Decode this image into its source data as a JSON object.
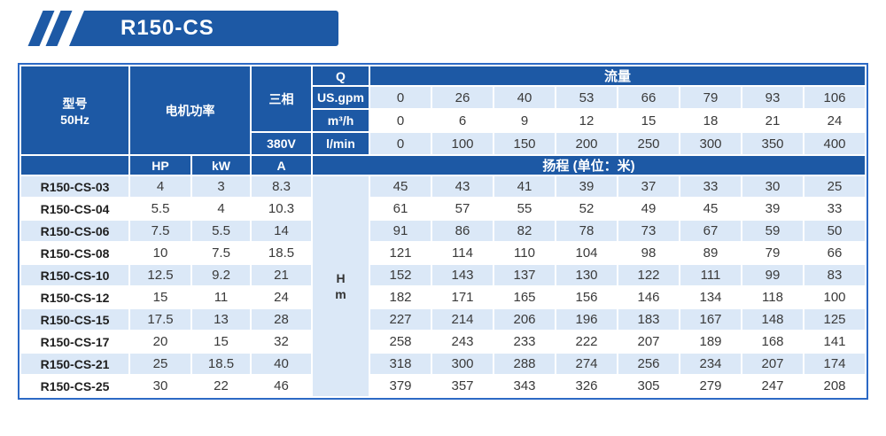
{
  "banner": {
    "title": "R150-CS"
  },
  "colors": {
    "primary_blue": "#1d59a5",
    "table_border_blue": "#2c69c5",
    "row_highlight_blue": "#dbe8f7",
    "row_white": "#ffffff",
    "value_text": "#3a3a3a"
  },
  "table": {
    "header": {
      "model_line1": "型号",
      "model_line2": "50Hz",
      "motor_power": "电机功率",
      "three_phase": "三相",
      "voltage": "380V",
      "q_label": "Q",
      "flow_label": "流量",
      "hp": "HP",
      "kw": "kW",
      "amp": "A",
      "head_label": "扬程 (单位：米)",
      "unit_rows": [
        {
          "unit": "US.gpm",
          "values": [
            0,
            26,
            40,
            53,
            66,
            79,
            93,
            106
          ]
        },
        {
          "unit": "m³/h",
          "values": [
            0,
            6,
            9,
            12,
            15,
            18,
            21,
            24
          ]
        },
        {
          "unit": "l/min",
          "values": [
            0,
            100,
            150,
            200,
            250,
            300,
            350,
            400
          ]
        }
      ]
    },
    "head_unit": {
      "line1": "H",
      "line2": "m"
    },
    "rows": [
      {
        "model": "R150-CS-03",
        "hp": "4",
        "kw": "3",
        "amp": "8.3",
        "head": [
          45,
          43,
          41,
          39,
          37,
          33,
          30,
          25
        ]
      },
      {
        "model": "R150-CS-04",
        "hp": "5.5",
        "kw": "4",
        "amp": "10.3",
        "head": [
          61,
          57,
          55,
          52,
          49,
          45,
          39,
          33
        ]
      },
      {
        "model": "R150-CS-06",
        "hp": "7.5",
        "kw": "5.5",
        "amp": "14",
        "head": [
          91,
          86,
          82,
          78,
          73,
          67,
          59,
          50
        ]
      },
      {
        "model": "R150-CS-08",
        "hp": "10",
        "kw": "7.5",
        "amp": "18.5",
        "head": [
          121,
          114,
          110,
          104,
          98,
          89,
          79,
          66
        ]
      },
      {
        "model": "R150-CS-10",
        "hp": "12.5",
        "kw": "9.2",
        "amp": "21",
        "head": [
          152,
          143,
          137,
          130,
          122,
          111,
          99,
          83
        ]
      },
      {
        "model": "R150-CS-12",
        "hp": "15",
        "kw": "11",
        "amp": "24",
        "head": [
          182,
          171,
          165,
          156,
          146,
          134,
          118,
          100
        ]
      },
      {
        "model": "R150-CS-15",
        "hp": "17.5",
        "kw": "13",
        "amp": "28",
        "head": [
          227,
          214,
          206,
          196,
          183,
          167,
          148,
          125
        ]
      },
      {
        "model": "R150-CS-17",
        "hp": "20",
        "kw": "15",
        "amp": "32",
        "head": [
          258,
          243,
          233,
          222,
          207,
          189,
          168,
          141
        ]
      },
      {
        "model": "R150-CS-21",
        "hp": "25",
        "kw": "18.5",
        "amp": "40",
        "head": [
          318,
          300,
          288,
          274,
          256,
          234,
          207,
          174
        ]
      },
      {
        "model": "R150-CS-25",
        "hp": "30",
        "kw": "22",
        "amp": "46",
        "head": [
          379,
          357,
          343,
          326,
          305,
          279,
          247,
          208
        ]
      }
    ]
  }
}
